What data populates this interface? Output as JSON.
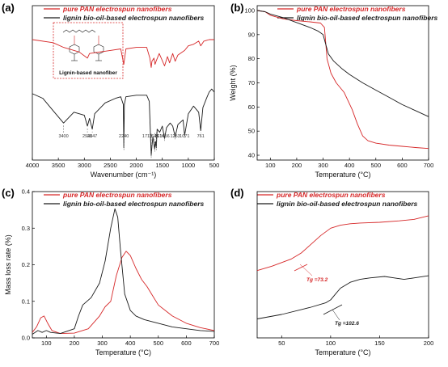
{
  "colors": {
    "pan": "#d62728",
    "lignin": "#1a1a1a"
  },
  "legend": {
    "pan": "pure PAN electrospun nanofibers",
    "lignin": "lignin bio-oil-based electrospun nanofibers"
  },
  "panels": {
    "a": {
      "label": "(a)",
      "xlabel": "Wavenumber (cm⁻¹)",
      "inset_title": "Lignin-based nanofiber",
      "peak_labels": [
        "3400",
        "2941",
        "2847",
        "2240",
        "1713",
        "1646",
        "1616",
        "1456",
        "1253",
        "1071",
        "761"
      ]
    },
    "b": {
      "label": "(b)",
      "xlabel": "Temperature (°C)",
      "ylabel": "Weight (%)"
    },
    "c": {
      "label": "(c)",
      "xlabel": "Temperature (°C)",
      "ylabel": "Mass loss rate (%)"
    },
    "d": {
      "label": "(d)",
      "xlabel": "Temperature (°C)",
      "tg_pan": "Tg =73.2",
      "tg_lignin": "Tg =102.6"
    }
  },
  "chart_data": [
    {
      "type": "line",
      "panel": "a",
      "xlabel": "Wavenumber (cm⁻¹)",
      "xlim": [
        4000,
        500
      ],
      "x_ticks": [
        4000,
        3500,
        3000,
        2500,
        2000,
        1500,
        1000,
        500
      ],
      "series": [
        {
          "name": "pure PAN electrospun nanofibers",
          "x": [
            4000,
            3600,
            3400,
            3100,
            2941,
            2900,
            2500,
            2300,
            2240,
            2200,
            2000,
            1800,
            1740,
            1713,
            1700,
            1660,
            1640,
            1620,
            1560,
            1456,
            1400,
            1360,
            1300,
            1253,
            1200,
            1071,
            1000,
            900,
            800,
            761,
            700,
            600,
            500
          ],
          "y": [
            0.78,
            0.76,
            0.73,
            0.7,
            0.66,
            0.69,
            0.71,
            0.72,
            0.62,
            0.72,
            0.73,
            0.73,
            0.66,
            0.6,
            0.64,
            0.66,
            0.62,
            0.64,
            0.69,
            0.61,
            0.67,
            0.63,
            0.69,
            0.64,
            0.68,
            0.71,
            0.74,
            0.75,
            0.77,
            0.74,
            0.77,
            0.78,
            0.78
          ]
        },
        {
          "name": "lignin bio-oil-based electrospun nanofibers",
          "x": [
            4000,
            3800,
            3600,
            3400,
            3200,
            3000,
            2941,
            2900,
            2847,
            2800,
            2600,
            2400,
            2300,
            2250,
            2240,
            2230,
            2200,
            2000,
            1800,
            1750,
            1713,
            1700,
            1680,
            1646,
            1630,
            1616,
            1600,
            1550,
            1500,
            1456,
            1420,
            1350,
            1300,
            1253,
            1200,
            1100,
            1071,
            1000,
            900,
            800,
            761,
            720,
            650,
            600,
            550,
            500
          ],
          "y": [
            0.43,
            0.4,
            0.32,
            0.24,
            0.31,
            0.29,
            0.22,
            0.27,
            0.2,
            0.3,
            0.37,
            0.4,
            0.41,
            0.36,
            0.08,
            0.36,
            0.41,
            0.42,
            0.42,
            0.38,
            0.03,
            0.09,
            0.15,
            0.07,
            0.12,
            0.08,
            0.2,
            0.18,
            0.22,
            0.14,
            0.21,
            0.24,
            0.22,
            0.15,
            0.23,
            0.26,
            0.16,
            0.3,
            0.35,
            0.31,
            0.19,
            0.34,
            0.4,
            0.44,
            0.46,
            0.44
          ]
        }
      ]
    },
    {
      "type": "line",
      "panel": "b",
      "xlabel": "Temperature (°C)",
      "ylabel": "Weight (%)",
      "xlim": [
        50,
        700
      ],
      "ylim": [
        38,
        102
      ],
      "x_ticks": [
        100,
        200,
        300,
        400,
        500,
        600,
        700
      ],
      "y_ticks": [
        40,
        50,
        60,
        70,
        80,
        90,
        100
      ],
      "series": [
        {
          "name": "pure PAN electrospun nanofibers",
          "x": [
            50,
            80,
            100,
            150,
            200,
            250,
            290,
            305,
            315,
            330,
            350,
            380,
            410,
            430,
            450,
            470,
            500,
            550,
            600,
            650,
            700
          ],
          "y": [
            100,
            99.5,
            98,
            96.5,
            95.8,
            95.3,
            94.8,
            93,
            80,
            74,
            70,
            66,
            59,
            53,
            48,
            46,
            45,
            44.2,
            43.7,
            43.2,
            42.8
          ]
        },
        {
          "name": "lignin bio-oil-based electrospun nanofibers",
          "x": [
            50,
            80,
            100,
            150,
            200,
            250,
            280,
            300,
            310,
            320,
            340,
            370,
            400,
            450,
            500,
            550,
            600,
            650,
            700
          ],
          "y": [
            100,
            99.5,
            98.5,
            97,
            95,
            93,
            91.5,
            90,
            86,
            82,
            79,
            76,
            73.5,
            70,
            67,
            64,
            61,
            58.5,
            56
          ]
        }
      ]
    },
    {
      "type": "line",
      "panel": "c",
      "xlabel": "Temperature (°C)",
      "ylabel": "Mass loss rate (%)",
      "xlim": [
        50,
        700
      ],
      "ylim": [
        0,
        0.4
      ],
      "x_ticks": [
        100,
        200,
        300,
        400,
        500,
        600,
        700
      ],
      "y_ticks": [
        0.0,
        0.1,
        0.2,
        0.3,
        0.4
      ],
      "series": [
        {
          "name": "pure PAN electrospun nanofibers",
          "x": [
            50,
            65,
            80,
            92,
            105,
            120,
            150,
            200,
            250,
            290,
            310,
            330,
            350,
            370,
            385,
            400,
            420,
            440,
            460,
            480,
            500,
            550,
            600,
            650,
            700
          ],
          "y": [
            0.015,
            0.03,
            0.055,
            0.06,
            0.04,
            0.02,
            0.012,
            0.013,
            0.025,
            0.06,
            0.085,
            0.1,
            0.17,
            0.22,
            0.237,
            0.225,
            0.19,
            0.16,
            0.14,
            0.115,
            0.09,
            0.06,
            0.04,
            0.028,
            0.02
          ]
        },
        {
          "name": "lignin bio-oil-based electrospun nanofibers",
          "x": [
            50,
            70,
            85,
            100,
            115,
            150,
            200,
            215,
            230,
            260,
            290,
            310,
            330,
            345,
            355,
            365,
            380,
            400,
            420,
            450,
            500,
            550,
            600,
            650,
            700
          ],
          "y": [
            0.01,
            0.02,
            0.015,
            0.02,
            0.015,
            0.012,
            0.025,
            0.06,
            0.09,
            0.11,
            0.15,
            0.21,
            0.3,
            0.353,
            0.33,
            0.24,
            0.12,
            0.075,
            0.06,
            0.05,
            0.04,
            0.03,
            0.025,
            0.02,
            0.018
          ]
        }
      ]
    },
    {
      "type": "line",
      "panel": "d",
      "xlabel": "Temperature (°C)",
      "xlim": [
        25,
        200
      ],
      "x_ticks": [
        50,
        100,
        150,
        200
      ],
      "series": [
        {
          "name": "pure PAN electrospun nanofibers",
          "x": [
            25,
            40,
            60,
            70,
            75,
            80,
            90,
            100,
            110,
            120,
            130,
            150,
            170,
            185,
            200
          ],
          "y": [
            0.46,
            0.49,
            0.54,
            0.58,
            0.61,
            0.64,
            0.7,
            0.75,
            0.77,
            0.78,
            0.785,
            0.79,
            0.8,
            0.81,
            0.835
          ]
        },
        {
          "name": "lignin bio-oil-based electrospun nanofibers",
          "x": [
            25,
            50,
            80,
            95,
            100,
            105,
            110,
            120,
            130,
            140,
            155,
            165,
            175,
            185,
            200
          ],
          "y": [
            0.13,
            0.16,
            0.21,
            0.24,
            0.26,
            0.3,
            0.34,
            0.38,
            0.4,
            0.41,
            0.42,
            0.41,
            0.4,
            0.41,
            0.425
          ]
        }
      ]
    }
  ]
}
